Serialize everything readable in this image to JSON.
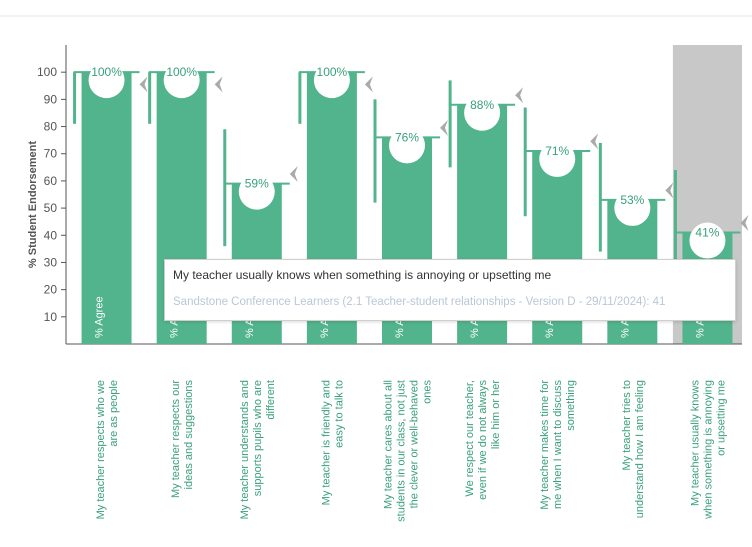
{
  "chart_data": {
    "type": "bar",
    "ylabel": "% Student Endorsement",
    "ylim": [
      0,
      110
    ],
    "yticks": [
      10,
      20,
      30,
      40,
      50,
      60,
      70,
      80,
      90,
      100
    ],
    "categories": [
      "My teacher respects who we are as people",
      "My teacher respects our ideas and suggestions",
      "My teacher understands and supports pupils who are different",
      "My teacher is friendly and easy to talk to",
      "My teacher cares about all students in our class, not just the clever or well-behaved ones",
      "We respect our teacher, even if we do not always like him or her",
      "My teacher makes time for me when I want to discuss something",
      "My teacher tries to understand how I am feeling",
      "My teacher usually knows when something is annoying or upsetting me"
    ],
    "label_lines": [
      [
        "My teacher respects who we",
        "are as people"
      ],
      [
        "My teacher respects our",
        "ideas and suggestions"
      ],
      [
        "My teacher understands and",
        "supports pupils who are",
        "different"
      ],
      [
        "My teacher is friendly and",
        "easy to talk to"
      ],
      [
        "My teacher cares about all",
        "students in our class, not just",
        "the clever or well-behaved",
        "ones"
      ],
      [
        "We respect our teacher,",
        "even if we do not always",
        "like him or her"
      ],
      [
        "My teacher makes time for",
        "me when I want to discuss",
        "something"
      ],
      [
        "My teacher tries to",
        "understand how I am feeling"
      ],
      [
        "My teacher usually knows",
        "when something is annoying",
        "or upsetting me"
      ]
    ],
    "values": [
      100,
      100,
      59,
      100,
      76,
      88,
      71,
      53,
      41
    ],
    "value_labels": [
      "100%",
      "100%",
      "59%",
      "100%",
      "76%",
      "88%",
      "71%",
      "53%",
      "41%"
    ],
    "ranges": [
      [
        81,
        100
      ],
      [
        81,
        100
      ],
      [
        36,
        79
      ],
      [
        81,
        100
      ],
      [
        52,
        90
      ],
      [
        65,
        97
      ],
      [
        47,
        87
      ],
      [
        34,
        74
      ],
      [
        24,
        64
      ]
    ],
    "agree_label": "% Agree",
    "highlighted_index": 8,
    "colors": {
      "bar": "#52b48c",
      "highlight_bg": "#c8c8c8",
      "marker": "#aaaaaa",
      "axis": "#555555"
    }
  },
  "tooltip": {
    "title": "My teacher usually knows when something is annoying or upsetting me",
    "subtitle": "Sandstone Conference Learners (2.1 Teacher-student relationships - Version D - 29/11/2024): 41"
  }
}
